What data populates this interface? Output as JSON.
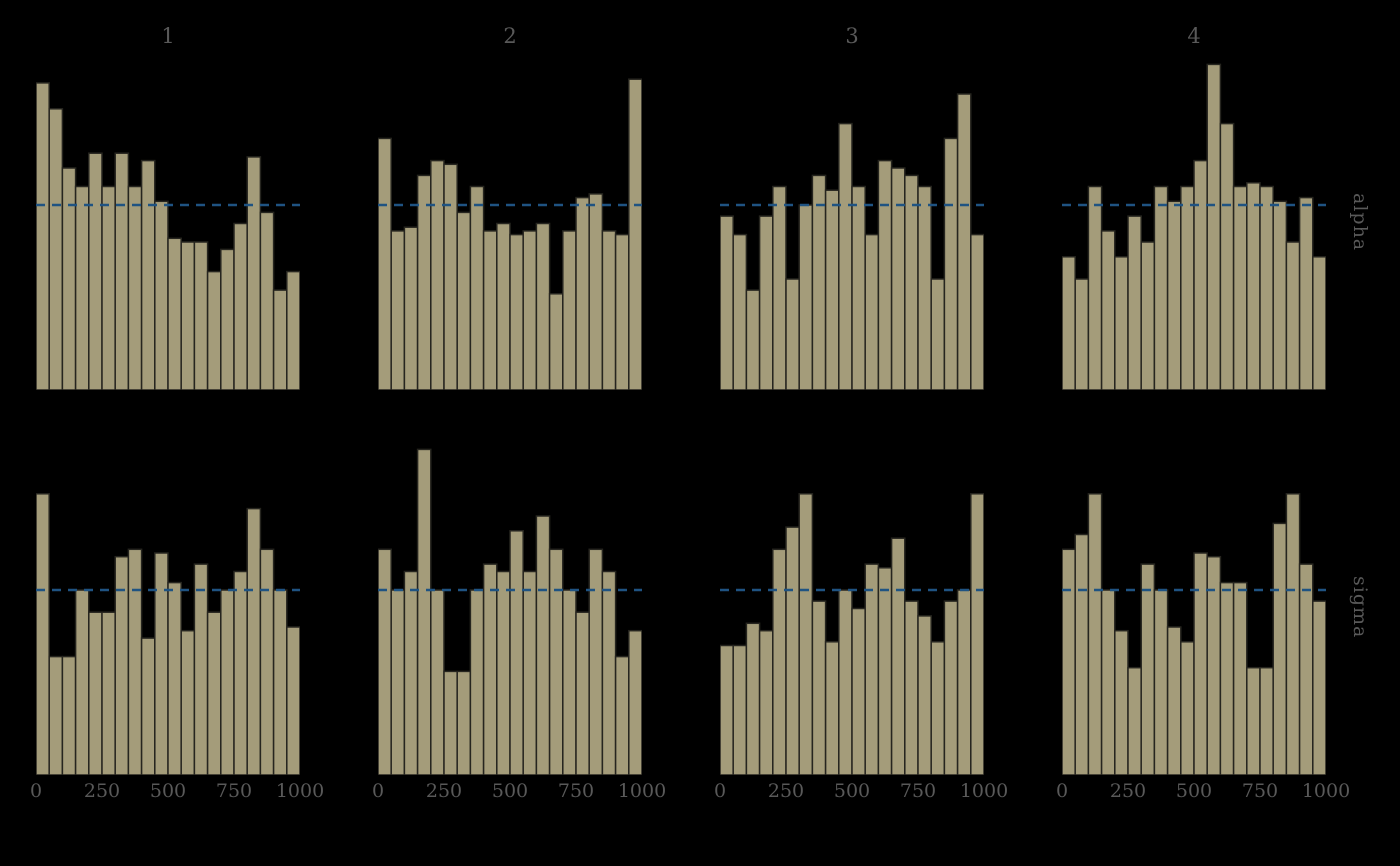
{
  "chart_data": {
    "type": "bar",
    "subtype": "rank-histogram-grid",
    "columns": [
      "1",
      "2",
      "3",
      "4"
    ],
    "rows": [
      "alpha",
      "sigma"
    ],
    "x_ticks": [
      "0",
      "250",
      "500",
      "750",
      "1000"
    ],
    "x_range": [
      0,
      1000
    ],
    "n_bins": 20,
    "reference_line_value": 50,
    "grid": "off",
    "legend": "none",
    "panels": [
      {
        "row": "alpha",
        "column": "1",
        "values": [
          83,
          76,
          60,
          55,
          64,
          55,
          64,
          55,
          62,
          51,
          41,
          40,
          40,
          32,
          38,
          45,
          63,
          48,
          27,
          32
        ]
      },
      {
        "row": "alpha",
        "column": "2",
        "values": [
          68,
          43,
          44,
          58,
          62,
          61,
          48,
          55,
          43,
          45,
          42,
          43,
          45,
          26,
          43,
          52,
          53,
          43,
          42,
          84
        ]
      },
      {
        "row": "alpha",
        "column": "3",
        "values": [
          47,
          42,
          27,
          47,
          55,
          30,
          50,
          58,
          54,
          72,
          55,
          42,
          62,
          60,
          58,
          55,
          30,
          68,
          80,
          42
        ]
      },
      {
        "row": "alpha",
        "column": "4",
        "values": [
          36,
          30,
          55,
          43,
          36,
          47,
          40,
          55,
          51,
          55,
          62,
          88,
          72,
          55,
          56,
          55,
          51,
          40,
          52,
          36
        ]
      },
      {
        "row": "sigma",
        "column": "1",
        "values": [
          76,
          32,
          32,
          50,
          44,
          44,
          59,
          61,
          37,
          60,
          52,
          39,
          57,
          44,
          50,
          55,
          72,
          61,
          50,
          40
        ]
      },
      {
        "row": "sigma",
        "column": "2",
        "values": [
          61,
          50,
          55,
          88,
          50,
          28,
          28,
          50,
          57,
          55,
          66,
          55,
          70,
          61,
          50,
          44,
          61,
          55,
          32,
          39
        ]
      },
      {
        "row": "sigma",
        "column": "3",
        "values": [
          35,
          35,
          41,
          39,
          61,
          67,
          76,
          47,
          36,
          50,
          45,
          57,
          56,
          64,
          47,
          43,
          36,
          47,
          50,
          76
        ]
      },
      {
        "row": "sigma",
        "column": "4",
        "values": [
          61,
          65,
          76,
          50,
          39,
          29,
          57,
          50,
          40,
          36,
          60,
          59,
          52,
          52,
          29,
          29,
          68,
          76,
          57,
          47
        ]
      }
    ],
    "style": {
      "bar_fill": "#a49c7a",
      "bar_edge": "#26251f",
      "reference_line_color": "#1f5382",
      "reference_line_style": "dashed",
      "text_color": "#595959",
      "background": "#000000"
    }
  }
}
